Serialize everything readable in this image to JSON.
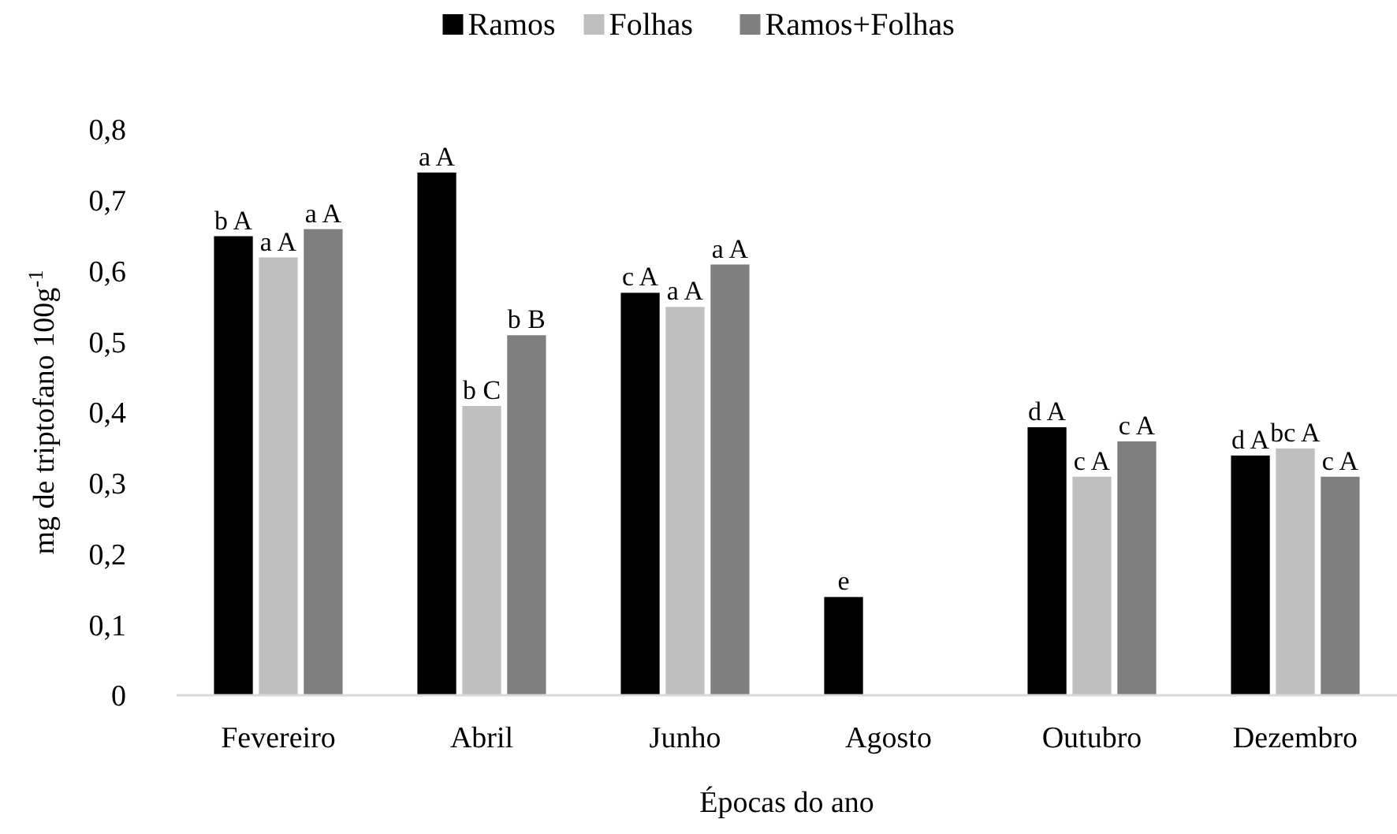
{
  "chart_data": {
    "type": "bar",
    "xlabel": "Épocas do ano",
    "ylabel": "mg de triptofano 100g$^{-1}$",
    "categories": [
      "Fevereiro",
      "Abril",
      "Junho",
      "Agosto",
      "Outubro",
      "Dezembro"
    ],
    "series": [
      {
        "name": "Ramos",
        "color": "#000000",
        "values": [
          0.65,
          0.74,
          0.57,
          0.14,
          0.38,
          0.34
        ],
        "value_labels": [
          "b A",
          "a A",
          "c A",
          "e",
          "d A",
          "d A"
        ]
      },
      {
        "name": "Folhas",
        "color": "#bfbfbf",
        "values": [
          0.62,
          0.41,
          0.55,
          null,
          0.31,
          0.35
        ],
        "value_labels": [
          "a A",
          "b C",
          "a A",
          null,
          "c A",
          "bc A"
        ]
      },
      {
        "name": "Ramos+Folhas",
        "color": "#7f7f7f",
        "values": [
          0.66,
          0.51,
          0.61,
          null,
          0.36,
          0.31
        ],
        "value_labels": [
          "a A",
          "b B",
          "a A",
          null,
          "c A",
          "c A"
        ]
      }
    ],
    "ylim": [
      0,
      0.8
    ],
    "yticks": [
      {
        "value": 0,
        "label": "0"
      },
      {
        "value": 0.1,
        "label": "0,1"
      },
      {
        "value": 0.2,
        "label": "0,2"
      },
      {
        "value": 0.3,
        "label": "0,3"
      },
      {
        "value": 0.4,
        "label": "0,4"
      },
      {
        "value": 0.5,
        "label": "0,5"
      },
      {
        "value": 0.6,
        "label": "0,6"
      },
      {
        "value": 0.7,
        "label": "0,7"
      },
      {
        "value": 0.8,
        "label": "0,8"
      }
    ],
    "grid": false,
    "legend": "top"
  }
}
